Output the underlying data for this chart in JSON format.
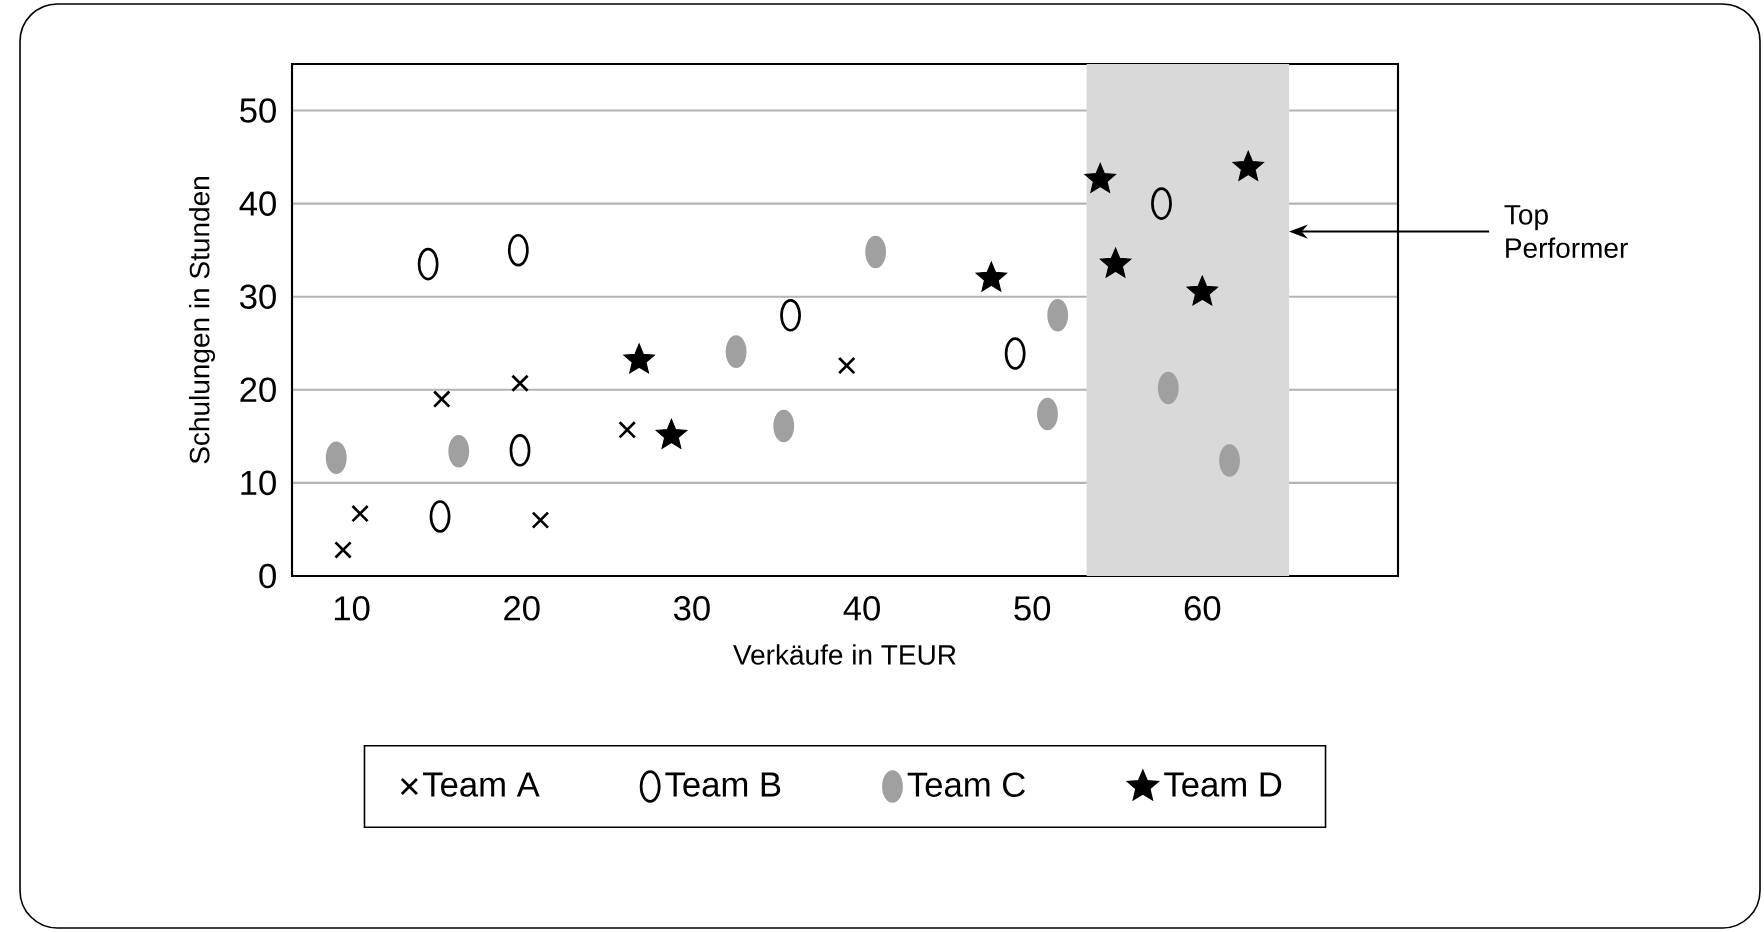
{
  "chart_data": {
    "type": "scatter",
    "xlabel": "Verkäufe in TEUR",
    "ylabel": "Schulungen in Stunden",
    "xlim": [
      6.5,
      71.5
    ],
    "ylim": [
      0,
      55
    ],
    "xticks": [
      10,
      20,
      30,
      40,
      50,
      60
    ],
    "yticks": [
      0,
      10,
      20,
      30,
      40,
      50
    ],
    "grid": "y",
    "legend": "bottom",
    "series": [
      {
        "name": "Team A",
        "color": "#000000",
        "marker": "cross",
        "x": [
          9.5,
          10.5,
          15.3,
          19.9,
          21.1,
          26.2,
          39.1
        ],
        "values": [
          2.8,
          6.7,
          19,
          20.7,
          6,
          15.7,
          22.6
        ]
      },
      {
        "name": "Team B",
        "color": "#000000",
        "marker": "circle",
        "x": [
          14.5,
          19.8,
          15.2,
          19.9,
          35.8,
          49,
          57.6
        ],
        "values": [
          33.5,
          35,
          6.4,
          13.5,
          28,
          23.9,
          40
        ]
      },
      {
        "name": "Team C",
        "color": "#a0a0a0",
        "marker": "circle",
        "x": [
          9.1,
          16.3,
          32.6,
          35.4,
          40.8,
          51.5,
          50.9,
          58,
          61.6
        ],
        "values": [
          12.7,
          13.4,
          24.1,
          16.1,
          34.8,
          28,
          17.4,
          20.2,
          12.4
        ]
      },
      {
        "name": "Team D",
        "color": "#000000",
        "marker": "star",
        "x": [
          26.9,
          28.8,
          47.6,
          54,
          54.9,
          60,
          62.7
        ],
        "values": [
          23.2,
          15.1,
          32,
          42.6,
          33.5,
          30.5,
          43.9
        ]
      }
    ],
    "bands": [
      {
        "axis": "x",
        "from": 53.2,
        "to": 65.1,
        "color": "#d9d9d9"
      }
    ],
    "annotations": [
      {
        "text": "Top Performer",
        "x": 65.1,
        "y": 37
      }
    ]
  }
}
